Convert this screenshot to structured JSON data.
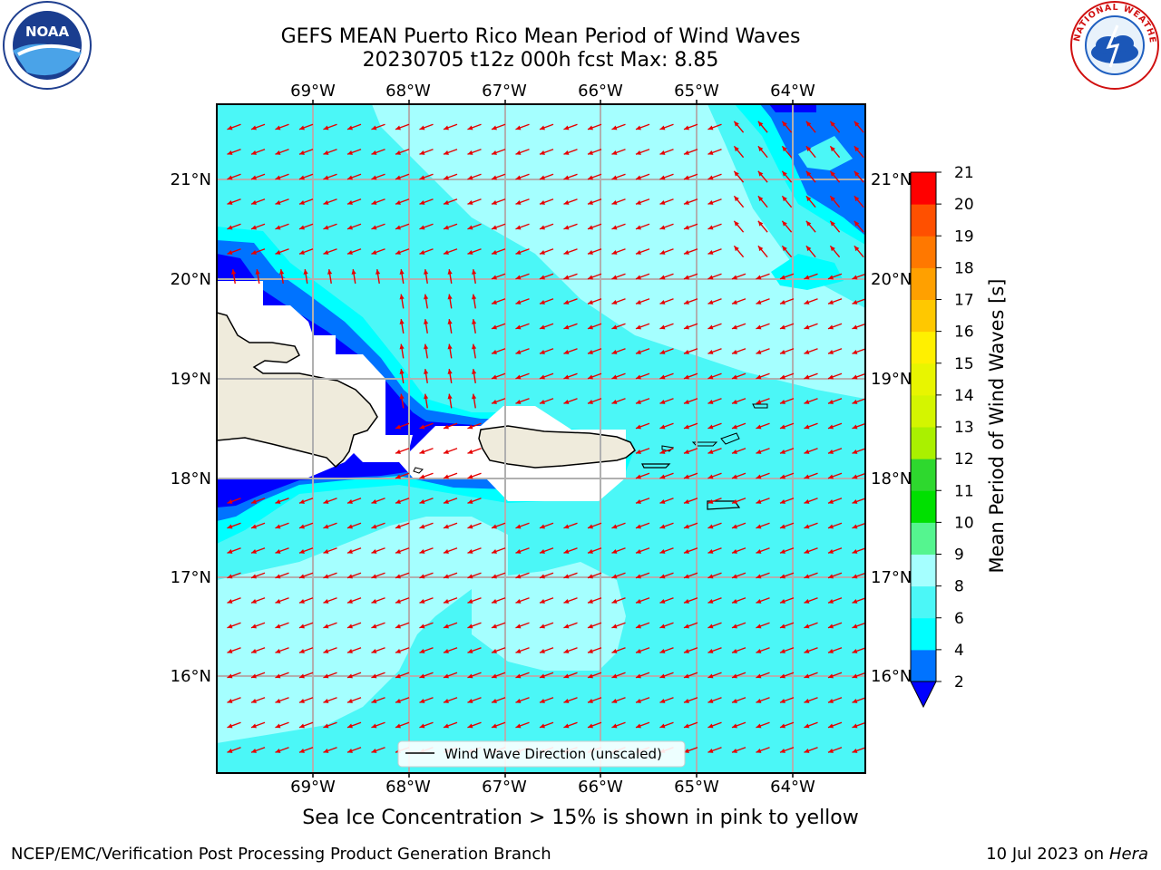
{
  "header": {
    "title_line1": "GEFS MEAN Puerto Rico Mean Period of Wind Waves",
    "title_line2": "20230705 t12z 000h fcst   Max: 8.85"
  },
  "map": {
    "lon_labels": [
      "69°W",
      "68°W",
      "67°W",
      "66°W",
      "65°W",
      "64°W"
    ],
    "lat_labels": [
      "21°N",
      "20°N",
      "19°N",
      "18°N",
      "17°N",
      "16°N"
    ],
    "legend_label": "Wind Wave Direction (unscaled)",
    "arrow_color": "#e60000",
    "land_color": "#efebdc"
  },
  "colorbar": {
    "label": "Mean Period of Wind Waves [s]",
    "ticks": [
      "2",
      "4",
      "6",
      "8",
      "9",
      "10",
      "11",
      "12",
      "13",
      "14",
      "15",
      "16",
      "17",
      "18",
      "19",
      "20",
      "21"
    ],
    "colors": [
      "#0073ff",
      "#00ffff",
      "#4bf7f7",
      "#a5ffff",
      "#55f58f",
      "#00e000",
      "#2ed82e",
      "#aaf000",
      "#d4f500",
      "#e8f500",
      "#fff000",
      "#ffc800",
      "#ffa000",
      "#ff7800",
      "#ff5000",
      "#ff0000"
    ],
    "under_color": "#0000ff"
  },
  "footer": {
    "caption": "Sea Ice Concentration > 15% is shown in pink to yellow",
    "left": "NCEP/EMC/Verification Post Processing Product Generation Branch",
    "right_date": "10 Jul 2023 on ",
    "right_host": "Hera"
  },
  "logos": {
    "noaa_text": "NOAA",
    "nws_text": "NATIONAL WEATHER SERVICE"
  }
}
